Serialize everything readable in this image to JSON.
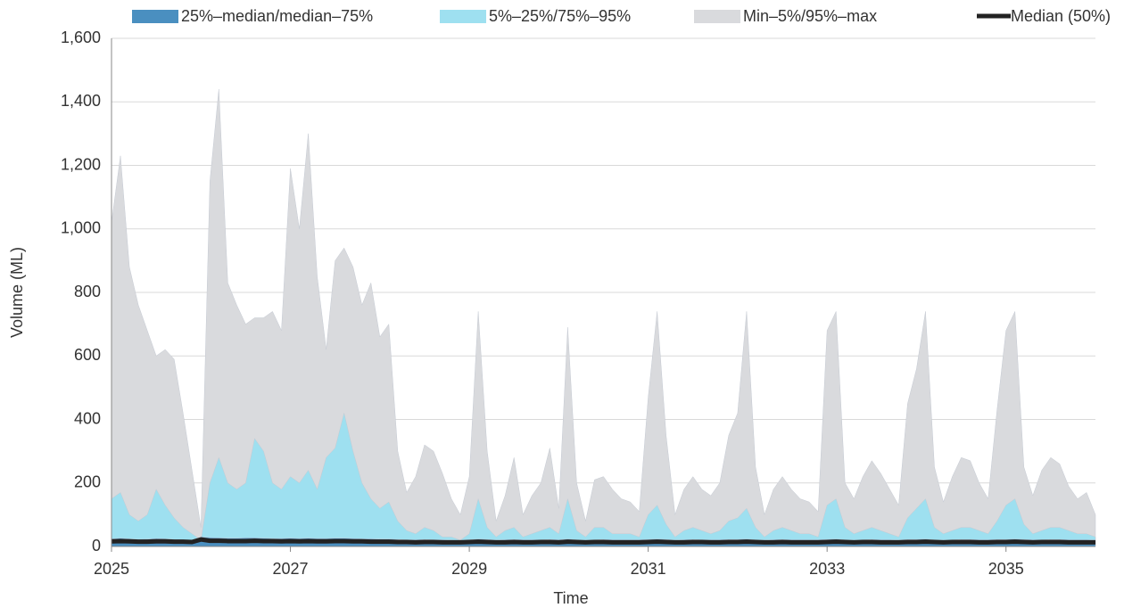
{
  "chart_data": {
    "type": "fan",
    "x_label": "Time",
    "y_label": "Volume (ML)",
    "xlim": [
      2025,
      2036
    ],
    "xticks": [
      2025,
      2027,
      2029,
      2031,
      2033,
      2035
    ],
    "ylim": [
      0,
      1600
    ],
    "yticks": [
      0,
      200,
      400,
      600,
      800,
      {
        "value": 1000,
        "label": "1,000"
      },
      {
        "value": 1200,
        "label": "1,200"
      },
      {
        "value": 1400,
        "label": "1,400"
      },
      {
        "value": 1600,
        "label": "1,600"
      }
    ],
    "grid": true,
    "legend": "top",
    "x": [
      2025.0,
      2025.1,
      2025.2,
      2025.3,
      2025.4,
      2025.5,
      2025.6,
      2025.7,
      2025.8,
      2025.9,
      2026.0,
      2026.1,
      2026.2,
      2026.3,
      2026.4,
      2026.5,
      2026.6,
      2026.7,
      2026.8,
      2026.9,
      2027.0,
      2027.1,
      2027.2,
      2027.3,
      2027.4,
      2027.5,
      2027.6,
      2027.7,
      2027.8,
      2027.9,
      2028.0,
      2028.1,
      2028.2,
      2028.3,
      2028.4,
      2028.5,
      2028.6,
      2028.7,
      2028.8,
      2028.9,
      2029.0,
      2029.1,
      2029.2,
      2029.3,
      2029.4,
      2029.5,
      2029.6,
      2029.7,
      2029.8,
      2029.9,
      2030.0,
      2030.1,
      2030.2,
      2030.3,
      2030.4,
      2030.5,
      2030.6,
      2030.7,
      2030.8,
      2030.9,
      2031.0,
      2031.1,
      2031.2,
      2031.3,
      2031.4,
      2031.5,
      2031.6,
      2031.7,
      2031.8,
      2031.9,
      2032.0,
      2032.1,
      2032.2,
      2032.3,
      2032.4,
      2032.5,
      2032.6,
      2032.7,
      2032.8,
      2032.9,
      2033.0,
      2033.1,
      2033.2,
      2033.3,
      2033.4,
      2033.5,
      2033.6,
      2033.7,
      2033.8,
      2033.9,
      2034.0,
      2034.1,
      2034.2,
      2034.3,
      2034.4,
      2034.5,
      2034.6,
      2034.7,
      2034.8,
      2034.9,
      2035.0,
      2035.1,
      2035.2,
      2035.3,
      2035.4,
      2035.5,
      2035.6,
      2035.7,
      2035.8,
      2035.9,
      2036.0
    ],
    "series": [
      {
        "name": "Min–5%/95%–max",
        "kind": "band",
        "color": "#d9dadd",
        "values": [
          1020,
          1230,
          880,
          760,
          680,
          600,
          620,
          590,
          420,
          240,
          60,
          1150,
          1440,
          830,
          760,
          700,
          720,
          720,
          740,
          680,
          1190,
          1000,
          1300,
          850,
          620,
          900,
          940,
          880,
          760,
          830,
          660,
          700,
          300,
          170,
          220,
          320,
          300,
          230,
          150,
          100,
          220,
          740,
          300,
          80,
          160,
          280,
          100,
          160,
          200,
          310,
          120,
          690,
          200,
          80,
          210,
          220,
          180,
          150,
          140,
          110,
          470,
          740,
          350,
          100,
          180,
          220,
          180,
          160,
          200,
          350,
          420,
          740,
          250,
          100,
          180,
          220,
          180,
          150,
          140,
          110,
          680,
          740,
          200,
          150,
          220,
          270,
          230,
          180,
          130,
          450,
          560,
          740,
          250,
          140,
          220,
          280,
          270,
          200,
          150,
          430,
          680,
          740,
          250,
          160,
          240,
          280,
          260,
          190,
          150,
          170,
          100
        ]
      },
      {
        "name": "5%–25%/75%–95%",
        "kind": "band",
        "color": "#9ee0f0",
        "values": [
          150,
          170,
          100,
          80,
          100,
          180,
          130,
          90,
          60,
          40,
          20,
          200,
          280,
          200,
          180,
          200,
          340,
          300,
          200,
          180,
          220,
          200,
          240,
          180,
          280,
          310,
          420,
          300,
          200,
          150,
          120,
          140,
          80,
          50,
          40,
          60,
          50,
          30,
          30,
          20,
          40,
          150,
          60,
          30,
          50,
          60,
          30,
          40,
          50,
          60,
          40,
          150,
          50,
          30,
          60,
          60,
          40,
          40,
          40,
          30,
          100,
          130,
          70,
          30,
          50,
          60,
          50,
          40,
          50,
          80,
          90,
          120,
          60,
          30,
          50,
          60,
          50,
          40,
          40,
          30,
          130,
          150,
          60,
          40,
          50,
          60,
          50,
          40,
          30,
          90,
          120,
          150,
          60,
          40,
          50,
          60,
          60,
          50,
          40,
          80,
          130,
          150,
          70,
          40,
          50,
          60,
          60,
          50,
          40,
          40,
          30
        ]
      },
      {
        "name": "25%–median/median–75%",
        "kind": "band",
        "color": "#4a8fc0",
        "values": [
          24,
          26,
          24,
          22,
          23,
          25,
          24,
          22,
          21,
          20,
          30,
          28,
          27,
          26,
          26,
          27,
          27,
          26,
          25,
          25,
          26,
          25,
          26,
          25,
          25,
          26,
          26,
          25,
          24,
          24,
          23,
          23,
          22,
          21,
          21,
          22,
          21,
          21,
          20,
          20,
          21,
          23,
          22,
          20,
          21,
          22,
          21,
          21,
          21,
          22,
          21,
          23,
          21,
          20,
          21,
          22,
          21,
          21,
          21,
          21,
          22,
          23,
          22,
          20,
          21,
          22,
          21,
          21,
          21,
          22,
          22,
          23,
          21,
          20,
          21,
          22,
          21,
          21,
          21,
          21,
          22,
          23,
          21,
          20,
          21,
          22,
          21,
          21,
          20,
          22,
          22,
          23,
          21,
          20,
          21,
          22,
          22,
          21,
          21,
          22,
          22,
          23,
          22,
          21,
          21,
          22,
          22,
          21,
          21,
          21,
          20
        ]
      },
      {
        "name": "Median (50%)",
        "kind": "line",
        "color": "#222222",
        "values": [
          16,
          17,
          16,
          15,
          15,
          16,
          16,
          15,
          15,
          14,
          22,
          18,
          18,
          17,
          17,
          17,
          18,
          17,
          17,
          16,
          17,
          16,
          17,
          16,
          16,
          17,
          17,
          16,
          16,
          15,
          15,
          15,
          14,
          14,
          13,
          14,
          14,
          13,
          13,
          13,
          14,
          15,
          14,
          13,
          13,
          14,
          13,
          13,
          14,
          14,
          13,
          15,
          14,
          13,
          14,
          14,
          13,
          13,
          13,
          13,
          14,
          15,
          14,
          13,
          13,
          14,
          14,
          13,
          13,
          14,
          14,
          15,
          14,
          13,
          13,
          14,
          13,
          13,
          13,
          13,
          14,
          15,
          14,
          13,
          14,
          14,
          13,
          13,
          13,
          14,
          14,
          15,
          14,
          13,
          14,
          14,
          14,
          13,
          13,
          14,
          14,
          15,
          14,
          13,
          14,
          14,
          14,
          13,
          13,
          13,
          13
        ]
      }
    ]
  }
}
